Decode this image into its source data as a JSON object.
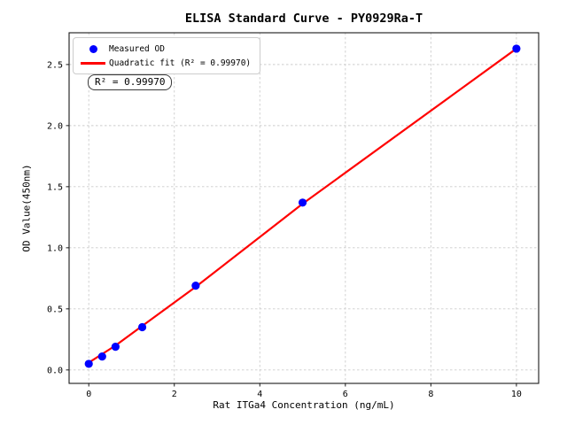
{
  "figure": {
    "title": "ELISA Standard Curve - PY0929Ra-T",
    "x_axis_label": "Rat ITGa4 Concentration (ng/mL)",
    "y_axis_label": "OD Value(450nm)",
    "annotation_box": "R² = 0.99970"
  },
  "legend": {
    "position": "upper left",
    "items": [
      {
        "label": "Measured OD",
        "marker": "dot",
        "color": "#0000ff"
      },
      {
        "label": "Quadratic fit (R² = 0.99970)",
        "marker": "line",
        "color": "#ff0000"
      }
    ]
  },
  "chart_data": {
    "type": "scatter",
    "title": "ELISA Standard Curve - PY0929Ra-T",
    "xlabel": "Rat ITGa4 Concentration (ng/mL)",
    "ylabel": "OD Value(450nm)",
    "r_squared_label": "R² = 0.99970",
    "r_squared": 0.9997,
    "xlim": [
      -0.46,
      10.52
    ],
    "ylim": [
      -0.11,
      2.76
    ],
    "x_ticks": [
      0,
      2,
      4,
      6,
      8,
      10
    ],
    "x_tick_labels": [
      "0",
      "2",
      "4",
      "6",
      "8",
      "10"
    ],
    "y_ticks": [
      0,
      0.5,
      1,
      1.5,
      2,
      2.5
    ],
    "y_tick_labels": [
      "0.0",
      "0.5",
      "1.0",
      "1.5",
      "2.0",
      "2.5"
    ],
    "grid": true,
    "grid_style": "dashed",
    "grid_color": "#cccccc",
    "spine_color": "#1a1a1a",
    "legend_position": "upper left",
    "series": [
      {
        "name": "Measured OD",
        "type": "scatter",
        "color": "#0000ff",
        "x": [
          0,
          0.3125,
          0.625,
          1.25,
          2.5,
          5,
          10
        ],
        "y": [
          0.05,
          0.11,
          0.19,
          0.35,
          0.69,
          1.37,
          2.63
        ]
      },
      {
        "name": "Quadratic fit (R² = 0.99970)",
        "type": "line",
        "color": "#ff0000",
        "x": [
          0,
          0.3125,
          0.625,
          1.25,
          2.5,
          5,
          10
        ],
        "y": [
          0.06,
          0.13,
          0.2,
          0.36,
          0.68,
          1.36,
          2.63
        ]
      }
    ]
  }
}
